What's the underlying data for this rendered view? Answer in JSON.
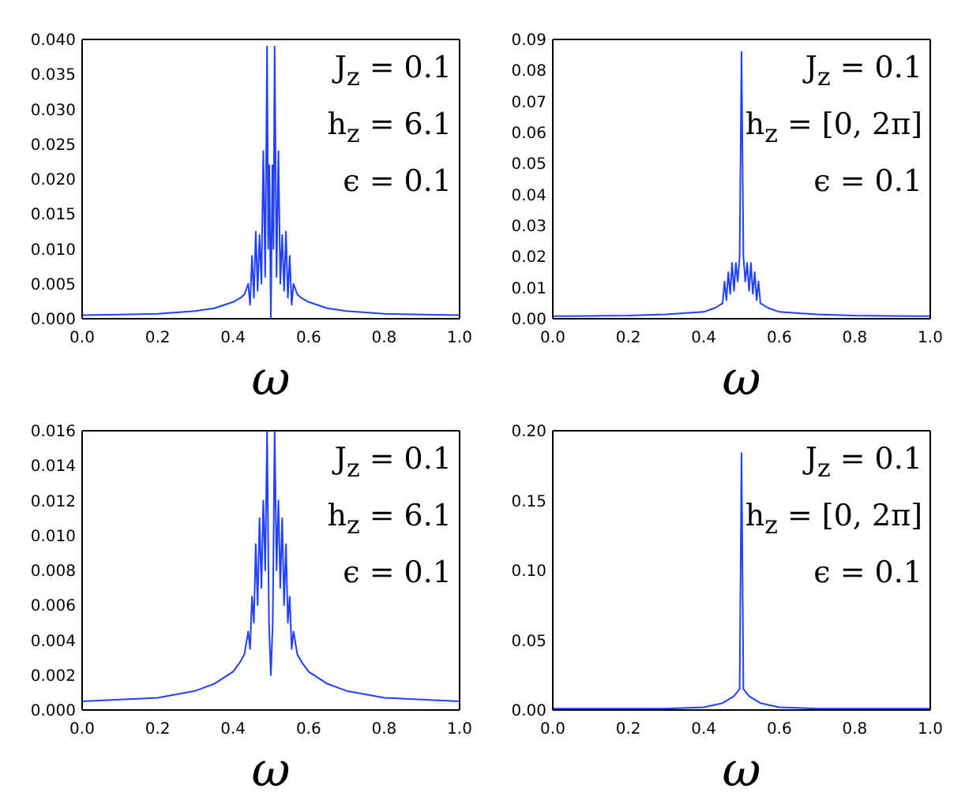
{
  "chart_data": [
    {
      "type": "line",
      "xlabel": "ω",
      "annotations": [
        "J$_{z}$ = 0.1",
        "h$_{z}$ = 6.1",
        "ϵ = 0.1"
      ],
      "grid": false,
      "x": [
        0,
        0.1,
        0.2,
        0.3,
        0.35,
        0.4,
        0.42,
        0.43,
        0.44,
        0.445,
        0.45,
        0.455,
        0.46,
        0.465,
        0.47,
        0.475,
        0.48,
        0.485,
        0.49,
        0.493,
        0.496,
        0.5,
        0.504,
        0.507,
        0.51,
        0.515,
        0.52,
        0.525,
        0.53,
        0.535,
        0.54,
        0.545,
        0.55,
        0.555,
        0.56,
        0.57,
        0.58,
        0.6,
        0.65,
        0.7,
        0.8,
        0.9,
        1.0
      ],
      "series": [
        {
          "color": "#2040ff",
          "values": [
            0.0005,
            0.0006,
            0.0007,
            0.0011,
            0.0015,
            0.0024,
            0.003,
            0.0035,
            0.005,
            0.002,
            0.009,
            0.003,
            0.0125,
            0.004,
            0.012,
            0.005,
            0.024,
            0.006,
            0.039,
            0.01,
            0.022,
            0.0,
            0.022,
            0.01,
            0.039,
            0.006,
            0.024,
            0.005,
            0.012,
            0.004,
            0.0125,
            0.003,
            0.009,
            0.002,
            0.005,
            0.0035,
            0.003,
            0.0024,
            0.0015,
            0.0011,
            0.0007,
            0.0006,
            0.0005
          ]
        }
      ],
      "xlim": [
        0,
        1
      ],
      "xticks": [
        {
          "value": 0,
          "label": "0.0"
        },
        {
          "value": 0.2,
          "label": "0.2"
        },
        {
          "value": 0.4,
          "label": "0.4"
        },
        {
          "value": 0.6,
          "label": "0.6"
        },
        {
          "value": 0.8,
          "label": "0.8"
        },
        {
          "value": 1,
          "label": "1.0"
        }
      ],
      "ylim": [
        0,
        0.04
      ],
      "yticks": [
        {
          "value": 0,
          "label": "0.000"
        },
        {
          "value": 0.005,
          "label": "0.005"
        },
        {
          "value": 0.01,
          "label": "0.010"
        },
        {
          "value": 0.015,
          "label": "0.015"
        },
        {
          "value": 0.02,
          "label": "0.020"
        },
        {
          "value": 0.025,
          "label": "0.025"
        },
        {
          "value": 0.03,
          "label": "0.030"
        },
        {
          "value": 0.035,
          "label": "0.035"
        },
        {
          "value": 0.04,
          "label": "0.040"
        }
      ]
    },
    {
      "type": "line",
      "xlabel": "ω",
      "annotations": [
        "J$_{z}$ = 0.1",
        "h$_{z}$ = [0, 2π]",
        "ϵ = 0.1"
      ],
      "grid": false,
      "x": [
        0,
        0.1,
        0.2,
        0.3,
        0.4,
        0.43,
        0.45,
        0.455,
        0.46,
        0.465,
        0.47,
        0.475,
        0.48,
        0.485,
        0.49,
        0.495,
        0.5,
        0.505,
        0.51,
        0.515,
        0.52,
        0.525,
        0.53,
        0.535,
        0.54,
        0.545,
        0.55,
        0.57,
        0.6,
        0.7,
        0.8,
        0.9,
        1.0
      ],
      "series": [
        {
          "color": "#2040ff",
          "values": [
            0.0008,
            0.0009,
            0.001,
            0.0014,
            0.0022,
            0.0035,
            0.005,
            0.012,
            0.006,
            0.015,
            0.008,
            0.018,
            0.009,
            0.018,
            0.012,
            0.02,
            0.086,
            0.02,
            0.012,
            0.018,
            0.009,
            0.018,
            0.008,
            0.015,
            0.006,
            0.012,
            0.005,
            0.0035,
            0.0022,
            0.0014,
            0.001,
            0.0009,
            0.0008
          ]
        }
      ],
      "xlim": [
        0,
        1
      ],
      "xticks": [
        {
          "value": 0,
          "label": "0.0"
        },
        {
          "value": 0.2,
          "label": "0.2"
        },
        {
          "value": 0.4,
          "label": "0.4"
        },
        {
          "value": 0.6,
          "label": "0.6"
        },
        {
          "value": 0.8,
          "label": "0.8"
        },
        {
          "value": 1,
          "label": "1.0"
        }
      ],
      "ylim": [
        0,
        0.09
      ],
      "yticks": [
        {
          "value": 0,
          "label": "0.00"
        },
        {
          "value": 0.01,
          "label": "0.01"
        },
        {
          "value": 0.02,
          "label": "0.02"
        },
        {
          "value": 0.03,
          "label": "0.03"
        },
        {
          "value": 0.04,
          "label": "0.04"
        },
        {
          "value": 0.05,
          "label": "0.05"
        },
        {
          "value": 0.06,
          "label": "0.06"
        },
        {
          "value": 0.07,
          "label": "0.07"
        },
        {
          "value": 0.08,
          "label": "0.08"
        },
        {
          "value": 0.09,
          "label": "0.09"
        }
      ]
    },
    {
      "type": "line",
      "xlabel": "ω",
      "annotations": [
        "J$_{z}$ = 0.1",
        "h$_{z}$ = 6.1",
        "ϵ = 0.1"
      ],
      "grid": false,
      "x": [
        0,
        0.1,
        0.2,
        0.3,
        0.35,
        0.4,
        0.42,
        0.43,
        0.44,
        0.445,
        0.45,
        0.455,
        0.46,
        0.465,
        0.47,
        0.475,
        0.48,
        0.485,
        0.49,
        0.495,
        0.5,
        0.505,
        0.51,
        0.515,
        0.52,
        0.525,
        0.53,
        0.535,
        0.54,
        0.545,
        0.55,
        0.555,
        0.56,
        0.57,
        0.58,
        0.6,
        0.65,
        0.7,
        0.8,
        0.9,
        1.0
      ],
      "series": [
        {
          "color": "#2040ff",
          "values": [
            0.0005,
            0.0006,
            0.0007,
            0.0011,
            0.0015,
            0.0022,
            0.0028,
            0.0032,
            0.0045,
            0.0035,
            0.0065,
            0.005,
            0.0095,
            0.006,
            0.011,
            0.007,
            0.012,
            0.008,
            0.016,
            0.005,
            0.002,
            0.005,
            0.016,
            0.008,
            0.012,
            0.007,
            0.011,
            0.006,
            0.0095,
            0.005,
            0.0065,
            0.0035,
            0.0045,
            0.0032,
            0.0028,
            0.0022,
            0.0015,
            0.0011,
            0.0007,
            0.0006,
            0.0005
          ]
        }
      ],
      "xlim": [
        0,
        1
      ],
      "xticks": [
        {
          "value": 0,
          "label": "0.0"
        },
        {
          "value": 0.2,
          "label": "0.2"
        },
        {
          "value": 0.4,
          "label": "0.4"
        },
        {
          "value": 0.6,
          "label": "0.6"
        },
        {
          "value": 0.8,
          "label": "0.8"
        },
        {
          "value": 1,
          "label": "1.0"
        }
      ],
      "ylim": [
        0,
        0.016
      ],
      "yticks": [
        {
          "value": 0,
          "label": "0.000"
        },
        {
          "value": 0.002,
          "label": "0.002"
        },
        {
          "value": 0.004,
          "label": "0.004"
        },
        {
          "value": 0.006,
          "label": "0.006"
        },
        {
          "value": 0.008,
          "label": "0.008"
        },
        {
          "value": 0.01,
          "label": "0.010"
        },
        {
          "value": 0.012,
          "label": "0.012"
        },
        {
          "value": 0.014,
          "label": "0.014"
        },
        {
          "value": 0.016,
          "label": "0.016"
        }
      ]
    },
    {
      "type": "line",
      "xlabel": "ω",
      "annotations": [
        "J$_{z}$ = 0.1",
        "h$_{z}$ = [0, 2π]",
        "ϵ = 0.1"
      ],
      "grid": false,
      "x": [
        0,
        0.1,
        0.2,
        0.3,
        0.4,
        0.45,
        0.48,
        0.495,
        0.5,
        0.505,
        0.52,
        0.55,
        0.6,
        0.7,
        0.8,
        0.9,
        1.0
      ],
      "series": [
        {
          "color": "#2040ff",
          "values": [
            0.001,
            0.001,
            0.001,
            0.001,
            0.002,
            0.005,
            0.01,
            0.015,
            0.184,
            0.015,
            0.01,
            0.005,
            0.002,
            0.001,
            0.001,
            0.001,
            0.001
          ]
        }
      ],
      "xlim": [
        0,
        1
      ],
      "xticks": [
        {
          "value": 0,
          "label": "0.0"
        },
        {
          "value": 0.2,
          "label": "0.2"
        },
        {
          "value": 0.4,
          "label": "0.4"
        },
        {
          "value": 0.6,
          "label": "0.6"
        },
        {
          "value": 0.8,
          "label": "0.8"
        },
        {
          "value": 1,
          "label": "1.0"
        }
      ],
      "ylim": [
        0,
        0.2
      ],
      "yticks": [
        {
          "value": 0,
          "label": "0.00"
        },
        {
          "value": 0.05,
          "label": "0.05"
        },
        {
          "value": 0.1,
          "label": "0.10"
        },
        {
          "value": 0.15,
          "label": "0.15"
        },
        {
          "value": 0.2,
          "label": "0.20"
        }
      ]
    }
  ]
}
